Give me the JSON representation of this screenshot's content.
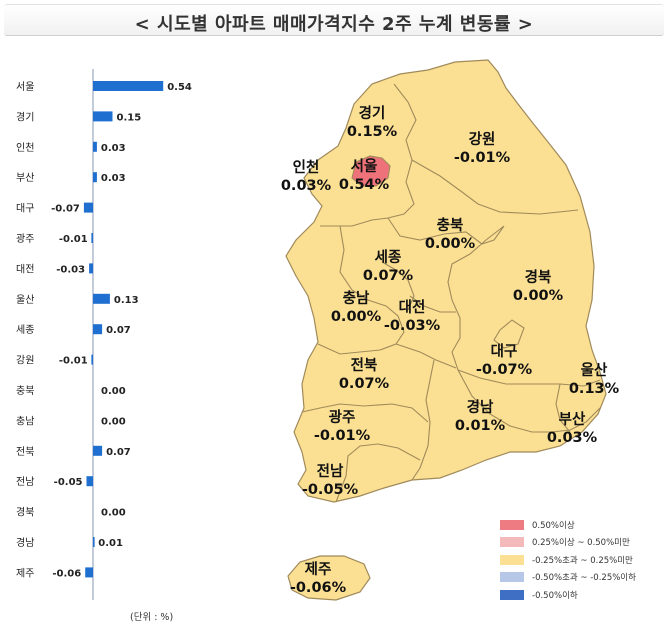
{
  "title": "< 시도별 아파트 매매가격지수 2주 누계 변동률 >",
  "unit_note": "(단위 : %)",
  "colors": {
    "bar": "#1f6fd1",
    "axis": "#9aa8c5",
    "land": "#fbe093",
    "border": "#a08a5a",
    "seoul": "#ee727a"
  },
  "chart_data": {
    "type": "bar",
    "orientation": "horizontal",
    "categories": [
      "서울",
      "경기",
      "인천",
      "부산",
      "대구",
      "광주",
      "대전",
      "울산",
      "세종",
      "강원",
      "충북",
      "충남",
      "전북",
      "전남",
      "경북",
      "경남",
      "제주"
    ],
    "values": [
      0.54,
      0.15,
      0.03,
      0.03,
      -0.07,
      -0.01,
      -0.03,
      0.13,
      0.07,
      -0.01,
      0.0,
      0.0,
      0.07,
      -0.05,
      0.0,
      0.01,
      -0.06
    ],
    "value_labels": [
      "0.54",
      "0.15",
      "0.03",
      "0.03",
      "-0.07",
      "-0.01",
      "-0.03",
      "0.13",
      "0.07",
      "-0.01",
      "0.00",
      "0.00",
      "0.07",
      "-0.05",
      "0.00",
      "0.01",
      "-0.06"
    ],
    "xlim": [
      -0.07,
      0.54
    ]
  },
  "map_labels": [
    {
      "region": "경기",
      "value": "0.15%"
    },
    {
      "region": "강원",
      "value": "-0.01%"
    },
    {
      "region": "인천",
      "value": "0.03%"
    },
    {
      "region": "서울",
      "value": "0.54%"
    },
    {
      "region": "충북",
      "value": "0.00%"
    },
    {
      "region": "세종",
      "value": "0.07%"
    },
    {
      "region": "경북",
      "value": "0.00%"
    },
    {
      "region": "충남",
      "value": "0.00%"
    },
    {
      "region": "대전",
      "value": "-0.03%"
    },
    {
      "region": "대구",
      "value": "-0.07%"
    },
    {
      "region": "전북",
      "value": "0.07%"
    },
    {
      "region": "울산",
      "value": "0.13%"
    },
    {
      "region": "경남",
      "value": "0.01%"
    },
    {
      "region": "부산",
      "value": "0.03%"
    },
    {
      "region": "광주",
      "value": "-0.01%"
    },
    {
      "region": "전남",
      "value": "-0.05%"
    },
    {
      "region": "제주",
      "value": "-0.06%"
    }
  ],
  "legend": [
    {
      "label": "0.50%이상",
      "color": "#ee7b82"
    },
    {
      "label": "0.25%이상 ~ 0.50%미만",
      "color": "#f4b9bb"
    },
    {
      "label": "-0.25%초과 ~ 0.25%미만",
      "color": "#fbe093"
    },
    {
      "label": "-0.50%초과 ~ -0.25%이하",
      "color": "#b7c7e8"
    },
    {
      "label": "-0.50%이하",
      "color": "#3f6fc4"
    }
  ]
}
